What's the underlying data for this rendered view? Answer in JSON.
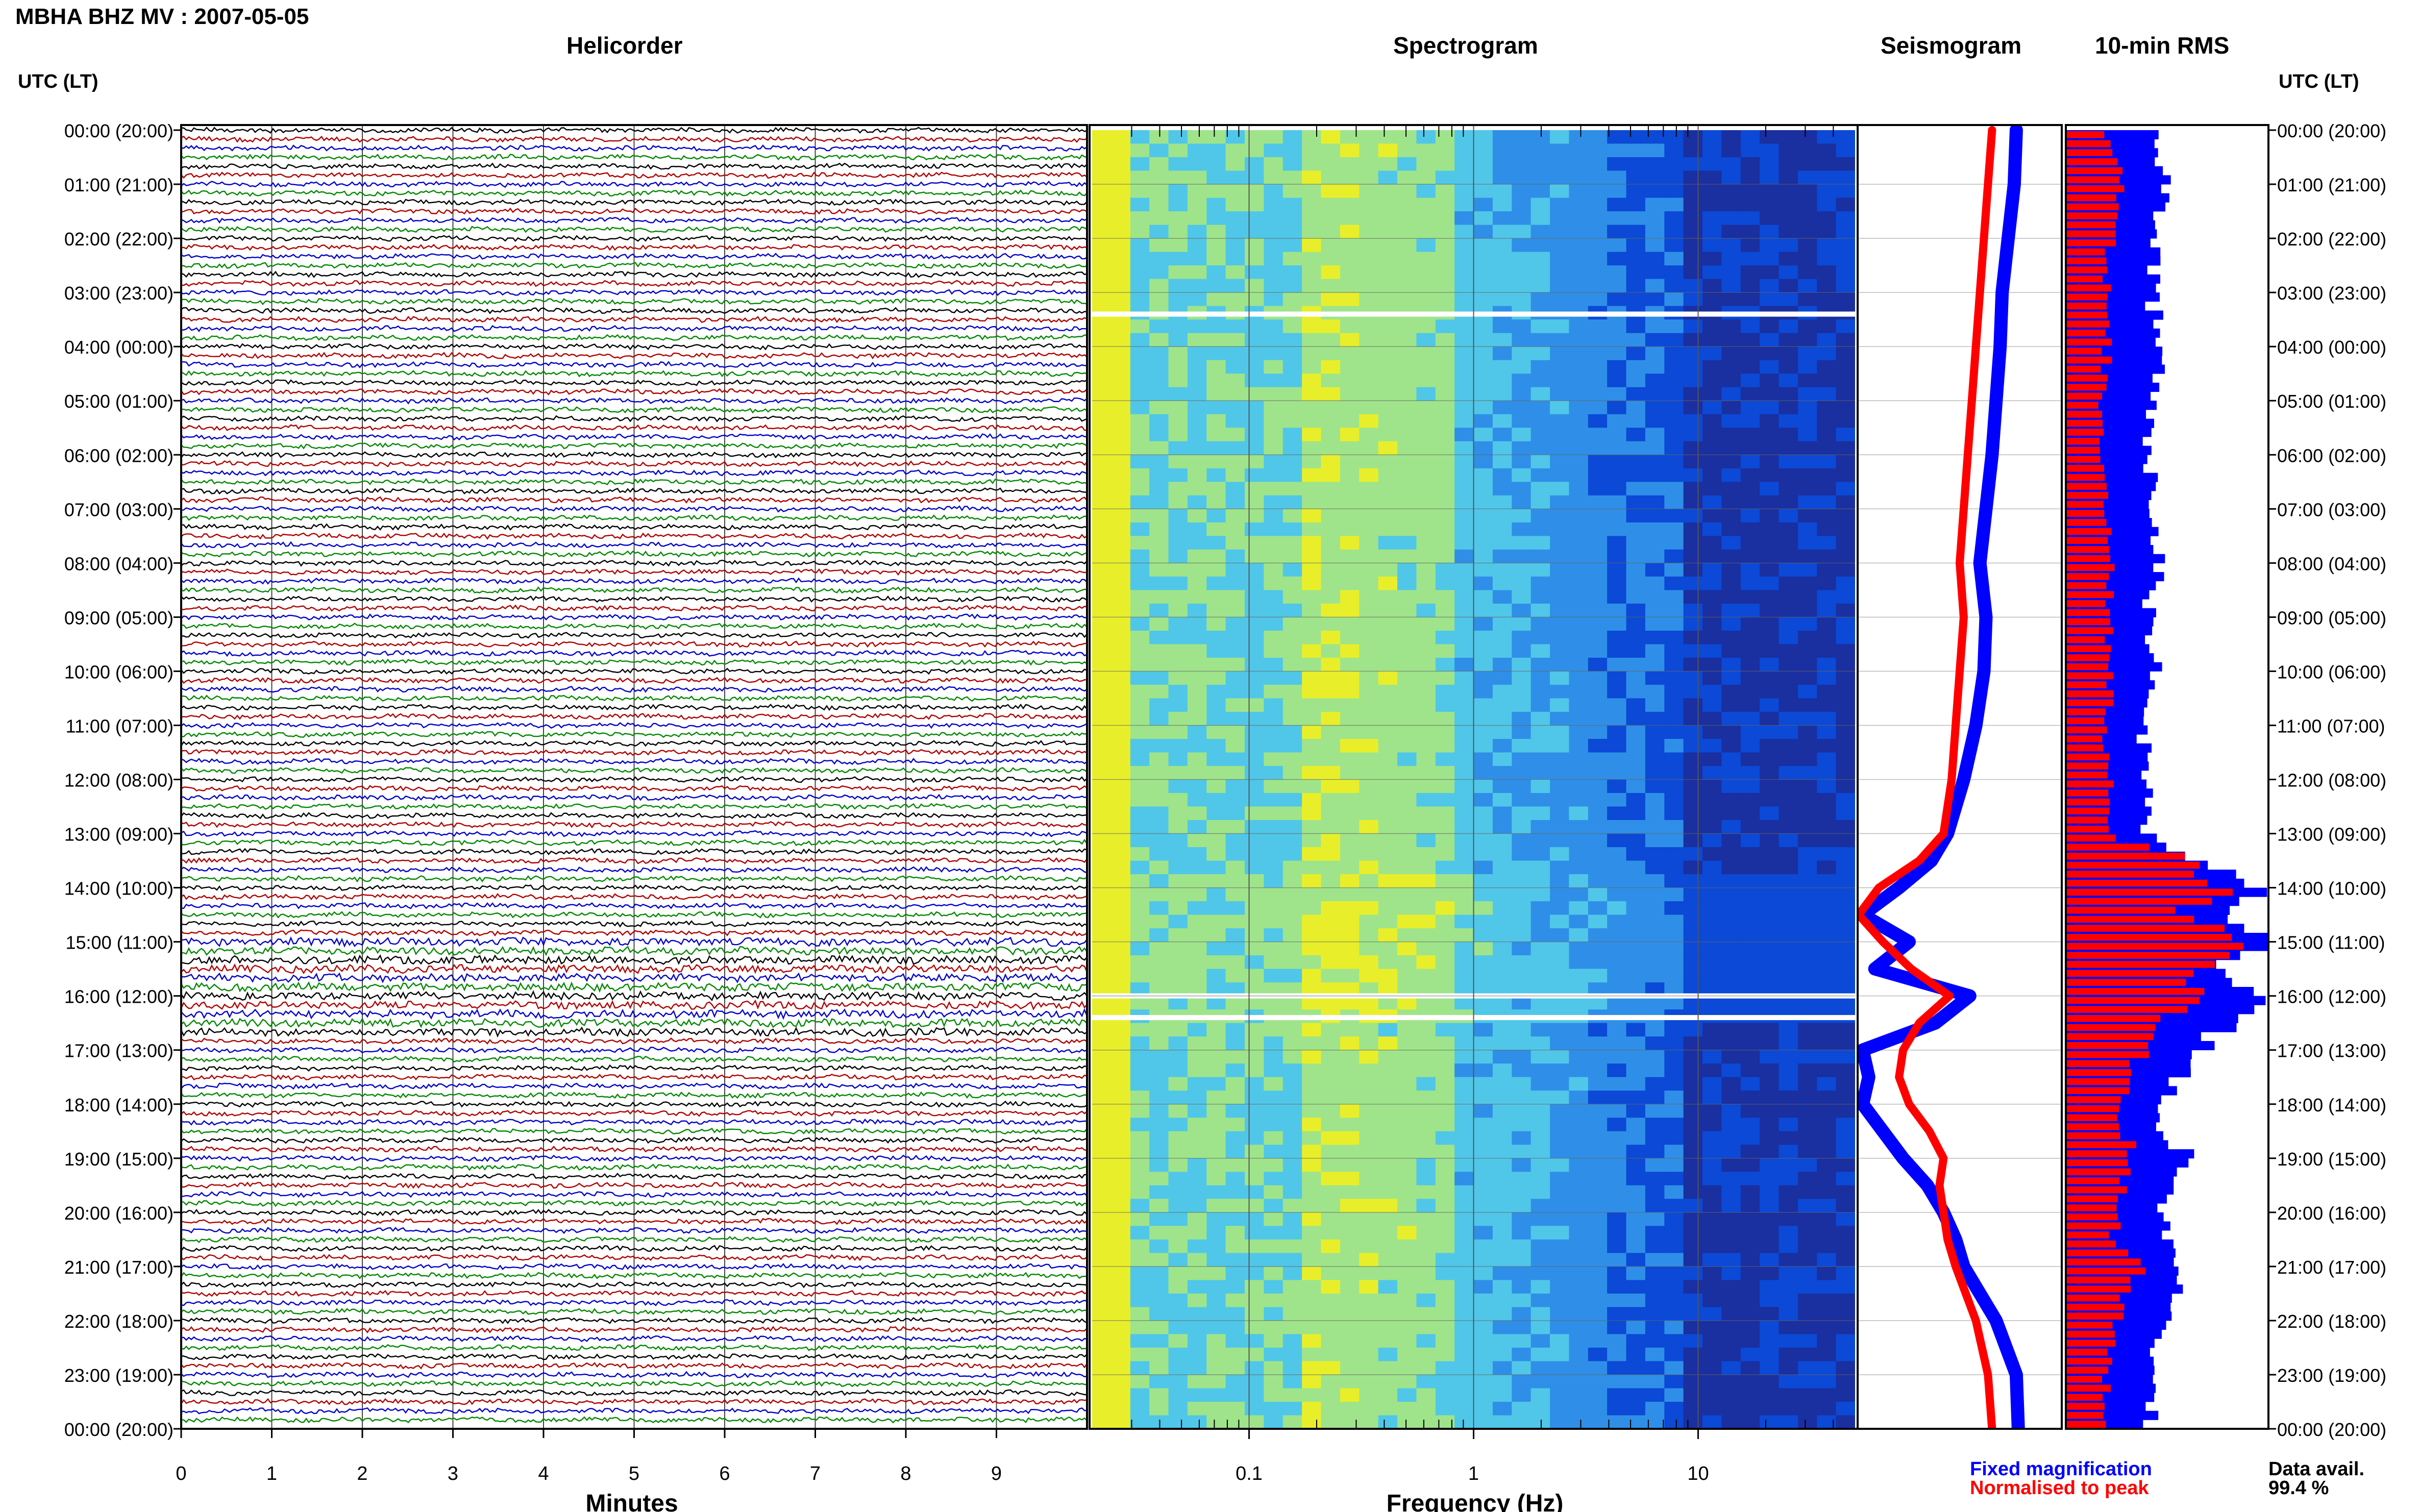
{
  "header": {
    "title": "MBHA BHZ MV : 2007-05-05"
  },
  "panels": {
    "helicorder": "Helicorder",
    "spectrogram": "Spectrogram",
    "seismogram": "Seismogram",
    "rms": "10-min RMS"
  },
  "time_axis_label": "UTC (LT)",
  "time_labels": [
    "00:00 (20:00)",
    "01:00 (21:00)",
    "02:00 (22:00)",
    "03:00 (23:00)",
    "04:00 (00:00)",
    "05:00 (01:00)",
    "06:00 (02:00)",
    "07:00 (03:00)",
    "08:00 (04:00)",
    "09:00 (05:00)",
    "10:00 (06:00)",
    "11:00 (07:00)",
    "12:00 (08:00)",
    "13:00 (09:00)",
    "14:00 (10:00)",
    "15:00 (11:00)",
    "16:00 (12:00)",
    "17:00 (13:00)",
    "18:00 (14:00)",
    "19:00 (15:00)",
    "20:00 (16:00)",
    "21:00 (17:00)",
    "22:00 (18:00)",
    "23:00 (19:00)",
    "00:00 (20:00)"
  ],
  "helicorder_x": {
    "label": "Minutes",
    "ticks": [
      "0",
      "1",
      "2",
      "3",
      "4",
      "5",
      "6",
      "7",
      "8",
      "9"
    ],
    "trace_colors": [
      "#000000",
      "#b00000",
      "#0000cc",
      "#008800"
    ]
  },
  "spectrogram_x": {
    "label": "Frequency (Hz)",
    "ticks": [
      "0.1",
      "1",
      "10"
    ]
  },
  "legend": {
    "fixed": "Fixed magnification",
    "normalised": "Normalised to peak",
    "fixed_color": "#0000ff",
    "normalised_color": "#ff0000"
  },
  "availability": {
    "label": "Data avail.",
    "value": "99.4 %"
  },
  "chart_data": [
    {
      "type": "line",
      "title": "Helicorder",
      "xlabel": "Minutes",
      "xlim": [
        0,
        10
      ],
      "rows_per_hour": 6,
      "hours": 24,
      "ylabel": "UTC (LT)"
    },
    {
      "type": "heatmap",
      "title": "Spectrogram",
      "xlabel": "Frequency (Hz)",
      "xscale": "log",
      "xlim": [
        0.02,
        50
      ],
      "colormap": [
        "#1a2fa0",
        "#0b49d6",
        "#2f8fe8",
        "#50c7e8",
        "#9fe48a",
        "#e8ef2a",
        "#f3a11c",
        "#c0261a"
      ]
    },
    {
      "type": "line",
      "title": "Seismogram",
      "series": [
        {
          "name": "Fixed magnification",
          "hours": [
            0,
            1,
            2,
            3,
            4,
            5,
            6,
            7,
            8,
            9,
            10,
            11,
            12,
            13,
            13.5,
            14,
            14.5,
            15,
            15.5,
            16,
            16.5,
            17,
            17.5,
            18,
            18.5,
            19,
            19.5,
            20,
            20.5,
            21,
            22,
            23,
            24
          ],
          "values": [
            0.78,
            0.77,
            0.74,
            0.71,
            0.7,
            0.68,
            0.66,
            0.63,
            0.6,
            0.63,
            0.62,
            0.58,
            0.52,
            0.44,
            0.36,
            0.2,
            0.02,
            0.25,
            0.08,
            0.55,
            0.38,
            0.02,
            0.05,
            0.02,
            0.12,
            0.22,
            0.34,
            0.42,
            0.48,
            0.52,
            0.68,
            0.78,
            0.79
          ]
        },
        {
          "name": "Normalised to peak",
          "hours": [
            0,
            1,
            2,
            3,
            4,
            5,
            6,
            7,
            8,
            9,
            10,
            11,
            12,
            13,
            13.5,
            14,
            14.5,
            15,
            15.5,
            16,
            16.5,
            17,
            17.5,
            18,
            18.5,
            19,
            19.5,
            20,
            20.5,
            21,
            22,
            23,
            24
          ],
          "values": [
            0.66,
            0.64,
            0.62,
            0.6,
            0.58,
            0.56,
            0.54,
            0.52,
            0.5,
            0.52,
            0.5,
            0.48,
            0.46,
            0.42,
            0.3,
            0.1,
            0.0,
            0.12,
            0.26,
            0.45,
            0.3,
            0.22,
            0.2,
            0.25,
            0.35,
            0.42,
            0.4,
            0.42,
            0.44,
            0.48,
            0.58,
            0.64,
            0.66
          ]
        }
      ]
    },
    {
      "type": "bar",
      "title": "10-min RMS",
      "orientation": "horizontal",
      "series": [
        {
          "name": "Fixed magnification",
          "hours": [
            0,
            1,
            2,
            3,
            4,
            5,
            6,
            7,
            8,
            9,
            10,
            11,
            12,
            13,
            13.5,
            14,
            14.5,
            15,
            15.5,
            16,
            16.5,
            17,
            17.5,
            18,
            18.5,
            19,
            19.5,
            20,
            20.5,
            21,
            22,
            23,
            24
          ],
          "values": [
            0.45,
            0.5,
            0.44,
            0.42,
            0.46,
            0.43,
            0.41,
            0.42,
            0.46,
            0.4,
            0.45,
            0.37,
            0.4,
            0.38,
            0.7,
            0.95,
            0.72,
            0.98,
            0.7,
            0.92,
            0.8,
            0.65,
            0.55,
            0.48,
            0.45,
            0.62,
            0.55,
            0.48,
            0.5,
            0.6,
            0.48,
            0.4,
            0.42
          ]
        },
        {
          "name": "Normalised to peak",
          "hours": [
            0,
            1,
            2,
            3,
            4,
            5,
            6,
            7,
            8,
            9,
            10,
            11,
            12,
            13,
            13.5,
            14,
            14.5,
            15,
            15.5,
            16,
            16.5,
            17,
            17.5,
            18,
            18.5,
            19,
            19.5,
            20,
            20.5,
            21,
            22,
            23,
            24
          ],
          "values": [
            0.2,
            0.26,
            0.22,
            0.2,
            0.2,
            0.18,
            0.18,
            0.19,
            0.22,
            0.2,
            0.24,
            0.18,
            0.2,
            0.22,
            0.58,
            0.8,
            0.55,
            0.88,
            0.66,
            0.66,
            0.52,
            0.4,
            0.28,
            0.28,
            0.24,
            0.36,
            0.28,
            0.22,
            0.25,
            0.35,
            0.26,
            0.2,
            0.2
          ]
        }
      ]
    }
  ]
}
